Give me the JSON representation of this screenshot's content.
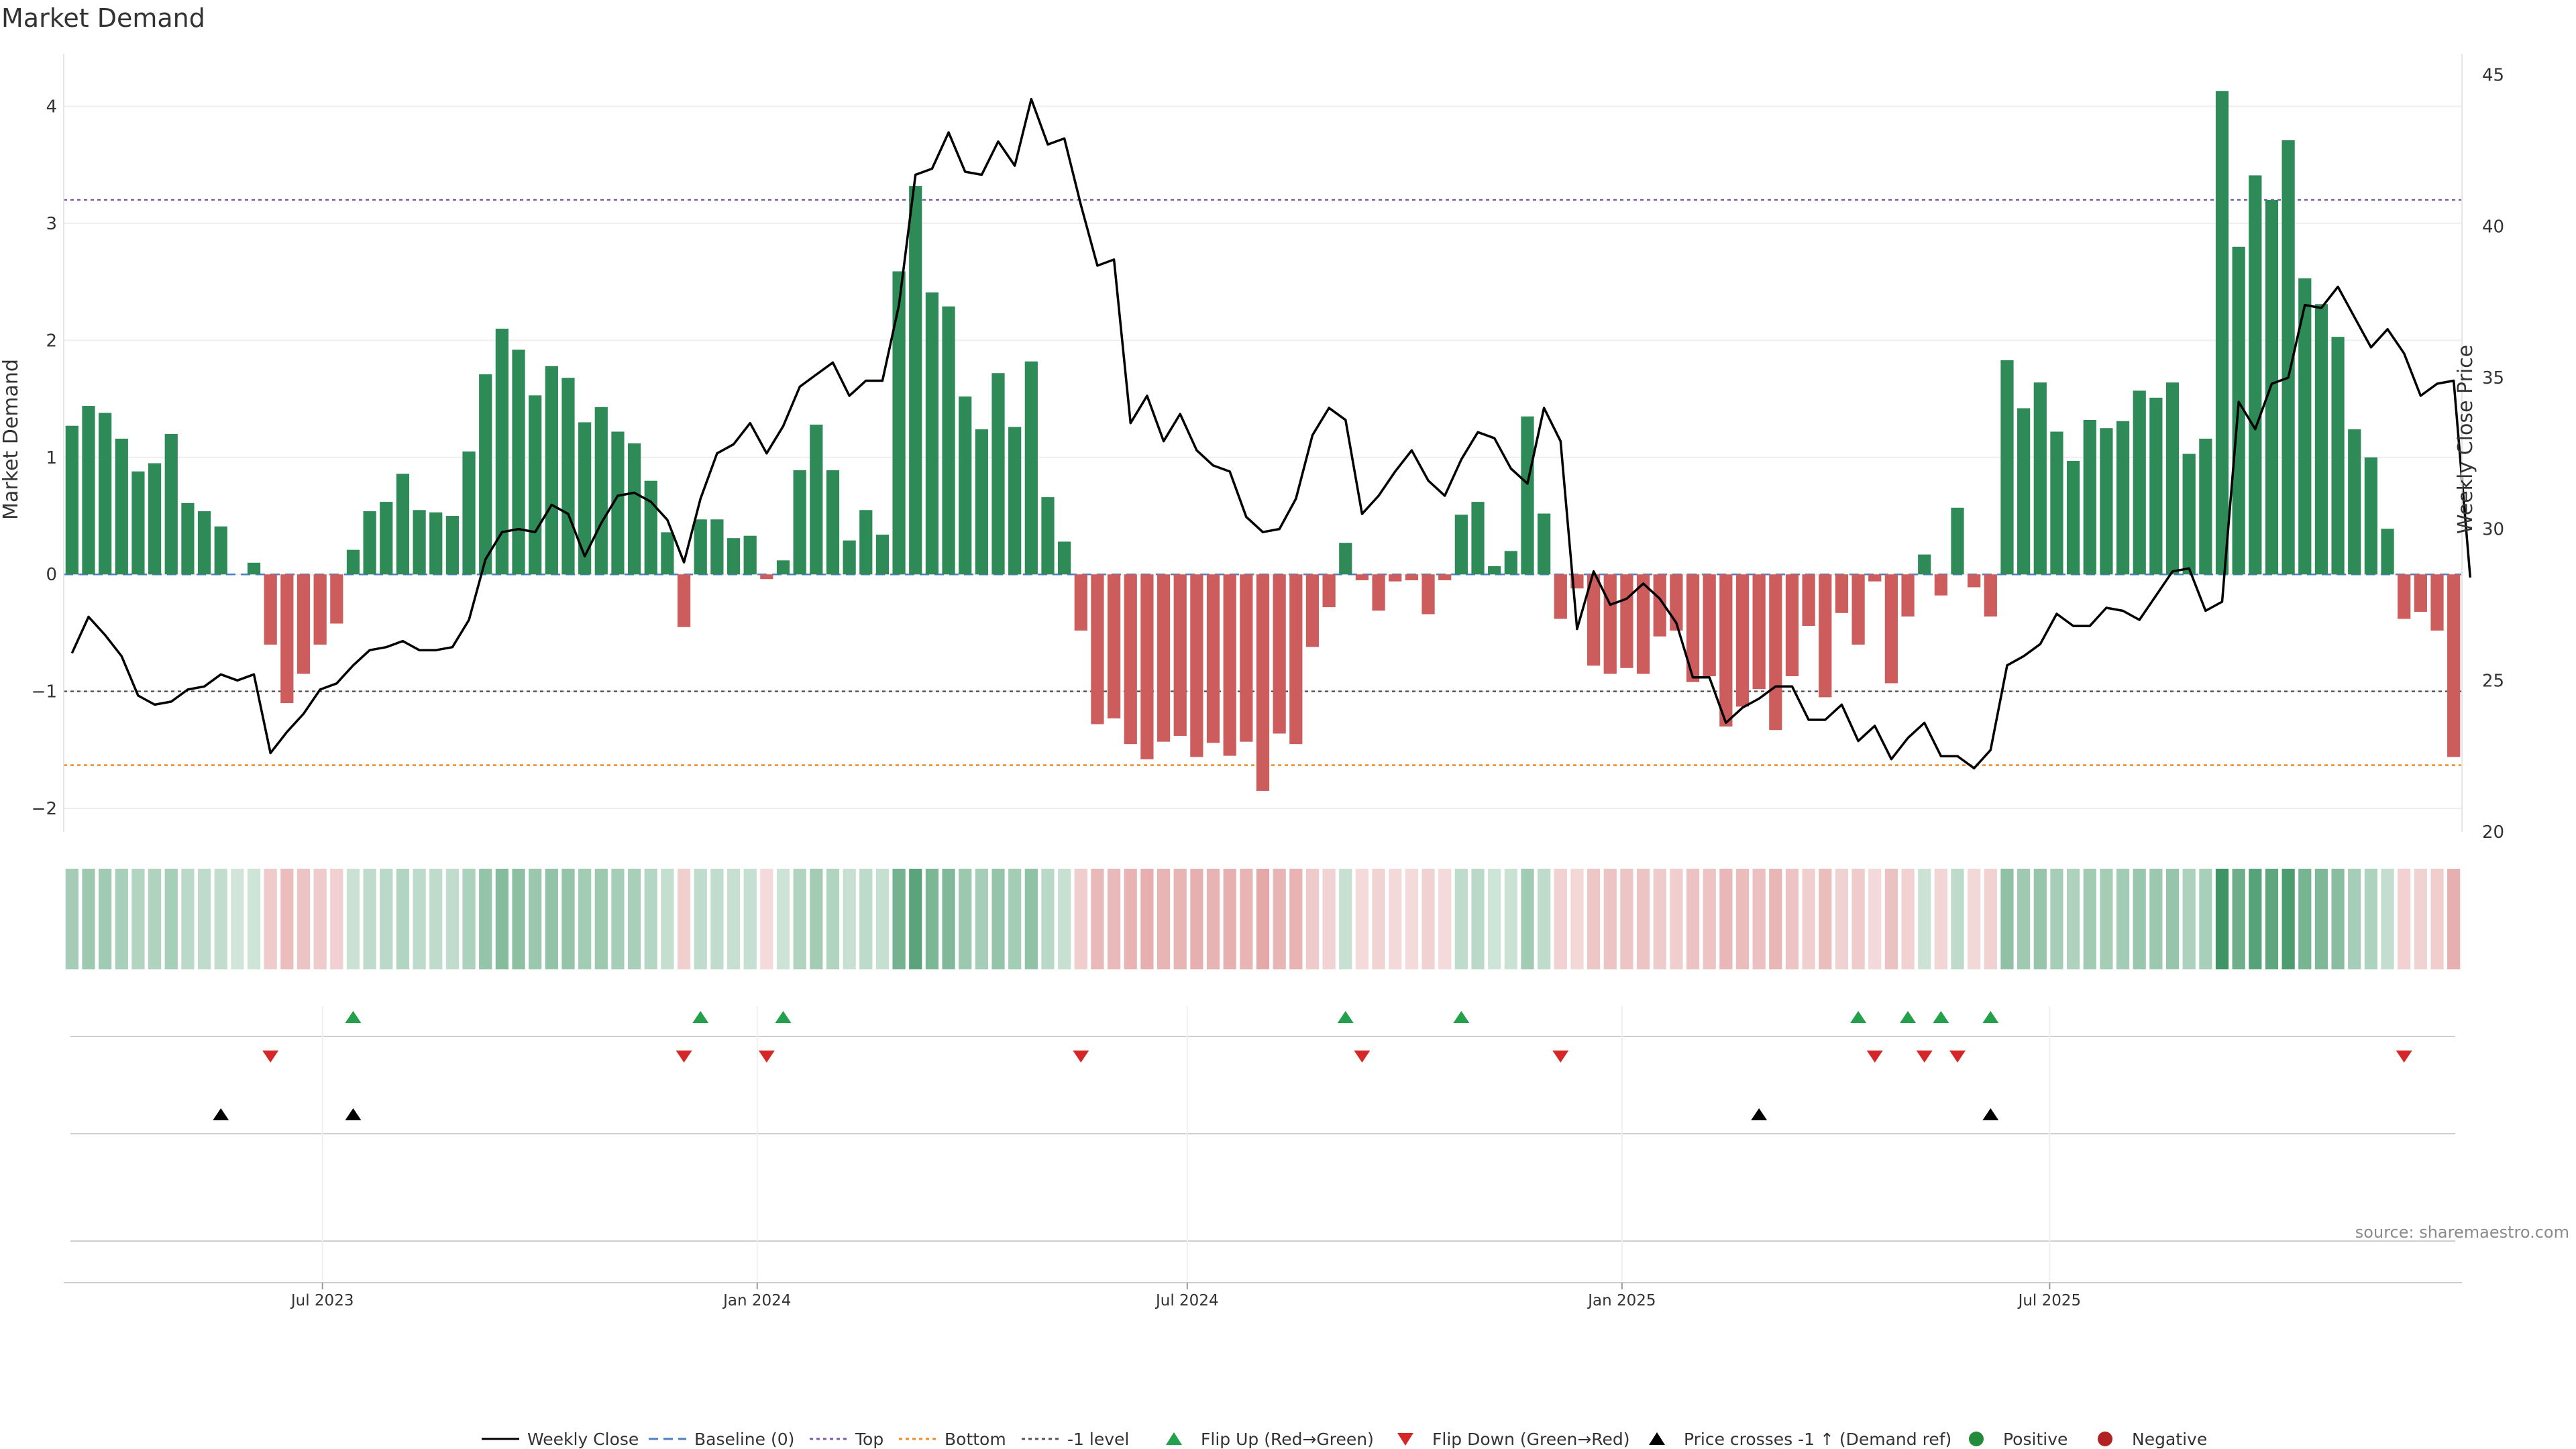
{
  "chart_data": {
    "type": "bar",
    "title": "Market Demand",
    "ylabel": "Market Demand",
    "y2label": "Weekly Close Price",
    "ylim": [
      -2.2,
      4.45
    ],
    "y2lim": [
      20,
      45.7
    ],
    "yticks": [
      -2,
      -1,
      0,
      1,
      2,
      3,
      4
    ],
    "ytick_labels": [
      "−2",
      "−1",
      "0",
      "1",
      "2",
      "3",
      "4"
    ],
    "y2ticks": [
      20,
      25,
      30,
      35,
      40,
      45
    ],
    "grid": true,
    "legend_position": "bottom",
    "source_note": "source: sharemaestro.com",
    "x_start": "2023-03-17",
    "weeks": 145,
    "x_ticks": [
      {
        "label": "Jul 2023",
        "date": "2023-07-01"
      },
      {
        "label": "Jan 2024",
        "date": "2024-01-01"
      },
      {
        "label": "Jul 2024",
        "date": "2024-07-01"
      },
      {
        "label": "Jan 2025",
        "date": "2025-01-01"
      },
      {
        "label": "Jul 2025",
        "date": "2025-07-01"
      }
    ],
    "reference_lines": {
      "baseline": 0,
      "top": 3.2,
      "bottom": -1.63,
      "minus_one": -1
    },
    "series": [
      {
        "name": "Market Demand",
        "values": [
          1.27,
          1.44,
          1.38,
          1.16,
          0.88,
          0.95,
          1.2,
          0.61,
          0.54,
          0.41,
          0,
          0.1,
          -0.6,
          -1.1,
          -0.85,
          -0.6,
          -0.42,
          0.21,
          0.54,
          0.62,
          0.86,
          0.55,
          0.53,
          0.5,
          1.05,
          1.71,
          2.1,
          1.92,
          1.53,
          1.78,
          1.68,
          1.3,
          1.43,
          1.22,
          1.12,
          0.8,
          0.36,
          -0.45,
          0.47,
          0.47,
          0.31,
          0.33,
          -0.04,
          0.12,
          0.89,
          1.28,
          0.89,
          0.29,
          0.55,
          0.34,
          2.59,
          3.32,
          2.41,
          2.29,
          1.52,
          1.24,
          1.72,
          1.26,
          1.82,
          0.66,
          0.28,
          -0.48,
          -1.28,
          -1.23,
          -1.45,
          -1.58,
          -1.43,
          -1.38,
          -1.56,
          -1.44,
          -1.55,
          -1.43,
          -1.85,
          -1.36,
          -1.45,
          -0.62,
          -0.28,
          0.27,
          -0.05,
          -0.31,
          -0.06,
          -0.05,
          -0.34,
          -0.05,
          0.51,
          0.62,
          0.07,
          0.2,
          1.35,
          0.52,
          -0.38,
          -0.12,
          -0.78,
          -0.85,
          -0.8,
          -0.85,
          -0.53,
          -0.48,
          -0.92,
          -0.87,
          -1.3,
          -1.13,
          -0.98,
          -1.33,
          -0.87,
          -0.44,
          -1.05,
          -0.33,
          -0.6,
          -0.06,
          -0.93,
          -0.36,
          0.17,
          -0.18,
          0.57,
          -0.11,
          -0.36,
          1.83,
          1.42,
          1.64,
          1.22,
          0.97,
          1.32,
          1.25,
          1.31,
          1.57,
          1.51,
          1.64,
          1.03,
          1.16,
          4.13,
          2.8,
          3.41,
          3.2,
          3.71,
          2.53,
          2.31,
          2.03,
          1.24,
          1.0,
          0.39,
          -0.38,
          -0.32,
          -0.48,
          -1.56
        ]
      },
      {
        "name": "Weekly Close",
        "values": [
          25.9,
          27.1,
          26.5,
          25.8,
          24.5,
          24.2,
          24.3,
          24.7,
          24.8,
          25.2,
          25.0,
          25.2,
          22.6,
          23.3,
          23.9,
          24.7,
          24.9,
          25.5,
          26.0,
          26.1,
          26.3,
          26.0,
          26.0,
          26.1,
          27.0,
          29.0,
          29.9,
          30.0,
          29.9,
          30.8,
          30.5,
          29.1,
          30.2,
          31.1,
          31.2,
          30.9,
          30.3,
          28.9,
          31.0,
          32.5,
          32.8,
          33.5,
          32.5,
          33.4,
          34.7,
          35.1,
          35.5,
          34.4,
          34.9,
          34.9,
          37.4,
          41.7,
          41.9,
          43.1,
          41.8,
          41.7,
          42.8,
          42.0,
          44.2,
          42.7,
          42.9,
          40.7,
          38.7,
          38.9,
          33.5,
          34.4,
          32.9,
          33.8,
          32.6,
          32.1,
          31.9,
          30.4,
          29.9,
          30.0,
          31.0,
          33.1,
          34.0,
          33.6,
          30.5,
          31.1,
          31.9,
          32.6,
          31.6,
          31.1,
          32.3,
          33.2,
          33.0,
          32.0,
          31.5,
          34.0,
          32.9,
          26.7,
          28.6,
          27.5,
          27.7,
          28.2,
          27.7,
          26.9,
          25.1,
          25.1,
          23.6,
          24.1,
          24.4,
          24.8,
          24.8,
          23.7,
          23.7,
          24.2,
          23.0,
          23.5,
          22.4,
          23.1,
          23.6,
          22.5,
          22.5,
          22.1,
          22.7,
          25.5,
          25.8,
          26.2,
          27.2,
          26.8,
          26.8,
          27.4,
          27.3,
          27.0,
          27.8,
          28.6,
          28.7,
          27.3,
          27.6,
          34.2,
          33.3,
          34.8,
          35.0,
          37.4,
          37.3,
          38.0,
          37.0,
          36.0,
          36.6,
          35.8,
          34.4,
          34.8,
          34.9,
          28.4
        ]
      }
    ],
    "flip_up_weeks": [
      17,
      38,
      43,
      77,
      84,
      108,
      111,
      113,
      116
    ],
    "flip_down_weeks": [
      12,
      37,
      42,
      61,
      78,
      90,
      109,
      112,
      114,
      141
    ],
    "price_cross_weeks": [
      9,
      17,
      102,
      116
    ],
    "legend": [
      {
        "label": "Weekly Close",
        "symbol": "line-solid",
        "color": "#000000"
      },
      {
        "label": "Baseline (0)",
        "symbol": "line-dashed",
        "color": "#4a7fc1"
      },
      {
        "label": "Top",
        "symbol": "line-dotted",
        "color": "#7b5ea7"
      },
      {
        "label": "Bottom",
        "symbol": "line-dotted",
        "color": "#f08a24"
      },
      {
        "label": "-1 level",
        "symbol": "line-dotted",
        "color": "#555555"
      },
      {
        "label": "Flip Up (Red→Green)",
        "symbol": "triangle-up",
        "color": "#22a04a"
      },
      {
        "label": "Flip Down (Green→Red)",
        "symbol": "triangle-down",
        "color": "#d62728"
      },
      {
        "label": "Price crosses -1 ↑ (Demand ref)",
        "symbol": "triangle-up",
        "color": "#000000"
      },
      {
        "label": "Positive",
        "symbol": "circle",
        "color": "#228b3c"
      },
      {
        "label": "Negative",
        "symbol": "circle",
        "color": "#b22222"
      }
    ],
    "colors": {
      "positive_bar": "#2e8b57",
      "negative_bar": "#cd5c5c",
      "price_line": "#000000",
      "top_line": "#7b5ea7",
      "bottom_line": "#f08a24",
      "minus_one_line": "#555555",
      "baseline": "#4a7fc1",
      "grid": "#eeeeee"
    }
  }
}
